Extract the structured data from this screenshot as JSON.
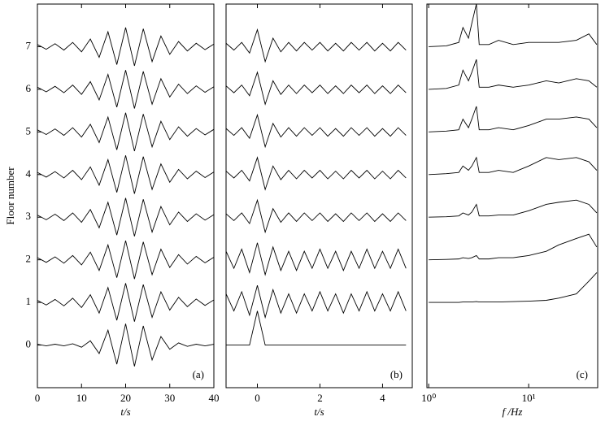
{
  "chart_data": [
    {
      "type": "line",
      "panel_label": "(a)",
      "ylabel": "Floor number",
      "xlabel": "t/s",
      "xlim": [
        0,
        40
      ],
      "xticks": [
        0,
        10,
        20,
        30,
        40
      ],
      "ylim": [
        -1,
        8
      ],
      "yticks": [
        0,
        1,
        2,
        3,
        4,
        5,
        6,
        7
      ],
      "x": [
        0,
        2,
        4,
        6,
        8,
        10,
        12,
        14,
        16,
        18,
        20,
        22,
        24,
        26,
        28,
        30,
        32,
        34,
        36,
        38,
        40
      ],
      "series": [
        {
          "color": "#000000",
          "values": [
            0.02,
            -0.02,
            0.02,
            -0.02,
            0.03,
            -0.05,
            0.1,
            -0.2,
            0.35,
            -0.45,
            0.5,
            -0.5,
            0.45,
            -0.35,
            0.2,
            -0.1,
            0.05,
            -0.03,
            0.02,
            -0.02,
            0.02
          ]
        },
        {
          "color": "#000000",
          "values": [
            1.05,
            0.94,
            1.07,
            0.92,
            1.1,
            0.88,
            1.18,
            0.75,
            1.35,
            0.58,
            1.45,
            0.55,
            1.42,
            0.65,
            1.25,
            0.82,
            1.12,
            0.9,
            1.08,
            0.93,
            1.06
          ]
        },
        {
          "color": "#000000",
          "values": [
            2.05,
            1.94,
            2.07,
            1.92,
            2.1,
            1.88,
            2.18,
            1.75,
            2.35,
            1.58,
            2.45,
            1.55,
            2.42,
            1.65,
            2.25,
            1.82,
            2.12,
            1.9,
            2.08,
            1.93,
            2.06
          ]
        },
        {
          "color": "#000000",
          "values": [
            3.05,
            2.94,
            3.07,
            2.92,
            3.1,
            2.88,
            3.18,
            2.75,
            3.35,
            2.58,
            3.45,
            2.55,
            3.42,
            2.65,
            3.25,
            2.82,
            3.12,
            2.9,
            3.08,
            2.93,
            3.06
          ]
        },
        {
          "color": "#000000",
          "values": [
            4.05,
            3.94,
            4.07,
            3.92,
            4.1,
            3.88,
            4.18,
            3.75,
            4.35,
            3.58,
            4.45,
            3.55,
            4.42,
            3.65,
            4.25,
            3.82,
            4.12,
            3.9,
            4.08,
            3.93,
            4.06
          ]
        },
        {
          "color": "#000000",
          "values": [
            5.05,
            4.94,
            5.07,
            4.92,
            5.1,
            4.88,
            5.18,
            4.75,
            5.35,
            4.58,
            5.45,
            4.55,
            5.42,
            4.65,
            5.25,
            4.82,
            5.12,
            4.9,
            5.08,
            4.93,
            5.06
          ]
        },
        {
          "color": "#000000",
          "values": [
            6.05,
            5.94,
            6.07,
            5.92,
            6.1,
            5.88,
            6.18,
            5.75,
            6.35,
            5.58,
            6.45,
            5.55,
            6.42,
            5.65,
            6.25,
            5.82,
            6.12,
            5.9,
            6.08,
            5.93,
            6.06
          ]
        },
        {
          "color": "#000000",
          "values": [
            7.05,
            6.94,
            7.07,
            6.92,
            7.1,
            6.88,
            7.18,
            6.75,
            7.35,
            6.58,
            7.45,
            6.55,
            7.42,
            6.65,
            7.25,
            6.82,
            7.12,
            6.9,
            7.08,
            6.93,
            7.06
          ]
        }
      ]
    },
    {
      "type": "line",
      "panel_label": "(b)",
      "xlabel": "t/s",
      "xlim": [
        -1,
        4.95
      ],
      "xticks": [
        0,
        2,
        4
      ],
      "ylim": [
        -1,
        8
      ],
      "x": [
        -1,
        -0.75,
        -0.5,
        -0.25,
        0,
        0.25,
        0.5,
        0.75,
        1,
        1.25,
        1.5,
        1.75,
        2,
        2.25,
        2.5,
        2.75,
        3,
        3.25,
        3.5,
        3.75,
        4,
        4.25,
        4.5,
        4.75
      ],
      "series": [
        {
          "color": "#000000",
          "values": [
            0,
            0,
            0,
            0,
            0.8,
            0,
            0,
            0,
            0,
            0,
            0,
            0,
            0,
            0,
            0,
            0,
            0,
            0,
            0,
            0,
            0,
            0,
            0,
            0
          ]
        },
        {
          "color": "#000000",
          "values": [
            1.2,
            0.8,
            1.25,
            0.7,
            1.4,
            0.65,
            1.3,
            0.75,
            1.2,
            0.75,
            1.2,
            0.8,
            1.25,
            0.8,
            1.2,
            0.75,
            1.2,
            0.8,
            1.25,
            0.8,
            1.2,
            0.8,
            1.25,
            0.8
          ]
        },
        {
          "color": "#000000",
          "values": [
            2.2,
            1.8,
            2.25,
            1.7,
            2.4,
            1.65,
            2.3,
            1.75,
            2.2,
            1.75,
            2.2,
            1.8,
            2.25,
            1.8,
            2.2,
            1.75,
            2.2,
            1.8,
            2.25,
            1.8,
            2.2,
            1.8,
            2.25,
            1.8
          ]
        },
        {
          "color": "#000000",
          "values": [
            3.08,
            2.92,
            3.1,
            2.85,
            3.4,
            2.65,
            3.2,
            2.88,
            3.1,
            2.9,
            3.1,
            2.92,
            3.1,
            2.9,
            3.08,
            2.9,
            3.1,
            2.92,
            3.1,
            2.9,
            3.08,
            2.9,
            3.1,
            2.92
          ]
        },
        {
          "color": "#000000",
          "values": [
            4.08,
            3.92,
            4.1,
            3.85,
            4.4,
            3.65,
            4.2,
            3.88,
            4.1,
            3.9,
            4.1,
            3.92,
            4.1,
            3.9,
            4.08,
            3.9,
            4.1,
            3.92,
            4.1,
            3.9,
            4.08,
            3.9,
            4.1,
            3.92
          ]
        },
        {
          "color": "#000000",
          "values": [
            5.08,
            4.92,
            5.1,
            4.85,
            5.4,
            4.65,
            5.2,
            4.88,
            5.1,
            4.9,
            5.1,
            4.92,
            5.1,
            4.9,
            5.08,
            4.9,
            5.1,
            4.92,
            5.1,
            4.9,
            5.08,
            4.9,
            5.1,
            4.92
          ]
        },
        {
          "color": "#000000",
          "values": [
            6.08,
            5.92,
            6.1,
            5.85,
            6.4,
            5.65,
            6.2,
            5.88,
            6.1,
            5.9,
            6.1,
            5.92,
            6.1,
            5.9,
            6.08,
            5.9,
            6.1,
            5.92,
            6.1,
            5.9,
            6.08,
            5.9,
            6.1,
            5.92
          ]
        },
        {
          "color": "#000000",
          "values": [
            7.08,
            6.92,
            7.1,
            6.85,
            7.4,
            6.65,
            7.2,
            6.88,
            7.1,
            6.9,
            7.1,
            6.92,
            7.1,
            6.9,
            7.08,
            6.9,
            7.1,
            6.92,
            7.1,
            6.9,
            7.08,
            6.9,
            7.1,
            6.92
          ]
        }
      ]
    },
    {
      "type": "line",
      "panel_label": "(c)",
      "xlabel": "f /Hz",
      "log_x": true,
      "xlim": [
        0.96,
        49
      ],
      "xticks": [
        {
          "value": 1,
          "label": "10⁰"
        },
        {
          "value": 10,
          "label": "10¹"
        }
      ],
      "ylim": [
        -1,
        8
      ],
      "x": [
        1,
        1.5,
        2,
        2.2,
        2.5,
        2.7,
        3,
        3.2,
        4,
        5,
        7,
        10,
        15,
        20,
        30,
        40,
        48
      ],
      "series": [
        {
          "color": "#000000",
          "values": [
            1,
            1,
            1,
            1.01,
            1.01,
            1.01,
            1.02,
            1.01,
            1.01,
            1.01,
            1.02,
            1.03,
            1.05,
            1.1,
            1.2,
            1.5,
            1.7
          ]
        },
        {
          "color": "#000000",
          "values": [
            2,
            2.01,
            2.02,
            2.05,
            2.03,
            2.05,
            2.1,
            2.02,
            2.02,
            2.05,
            2.05,
            2.1,
            2.2,
            2.35,
            2.5,
            2.6,
            2.3
          ]
        },
        {
          "color": "#000000",
          "values": [
            3,
            3.01,
            3.03,
            3.1,
            3.05,
            3.12,
            3.3,
            3.03,
            3.03,
            3.05,
            3.05,
            3.15,
            3.3,
            3.35,
            3.4,
            3.3,
            3.1
          ]
        },
        {
          "color": "#000000",
          "values": [
            4,
            4.02,
            4.05,
            4.2,
            4.1,
            4.2,
            4.4,
            4.05,
            4.05,
            4.1,
            4.05,
            4.2,
            4.4,
            4.35,
            4.4,
            4.3,
            4.1
          ]
        },
        {
          "color": "#000000",
          "values": [
            5,
            5.02,
            5.05,
            5.3,
            5.1,
            5.3,
            5.6,
            5.05,
            5.05,
            5.1,
            5.05,
            5.15,
            5.3,
            5.3,
            5.35,
            5.3,
            5.1
          ]
        },
        {
          "color": "#000000",
          "values": [
            6,
            6.02,
            6.1,
            6.45,
            6.2,
            6.4,
            6.7,
            6.05,
            6.05,
            6.1,
            6.05,
            6.1,
            6.2,
            6.15,
            6.25,
            6.2,
            6.05
          ]
        },
        {
          "color": "#000000",
          "values": [
            7,
            7.02,
            7.1,
            7.45,
            7.2,
            7.55,
            8,
            7.05,
            7.05,
            7.15,
            7.05,
            7.1,
            7.1,
            7.1,
            7.15,
            7.3,
            7.05
          ]
        }
      ]
    }
  ]
}
